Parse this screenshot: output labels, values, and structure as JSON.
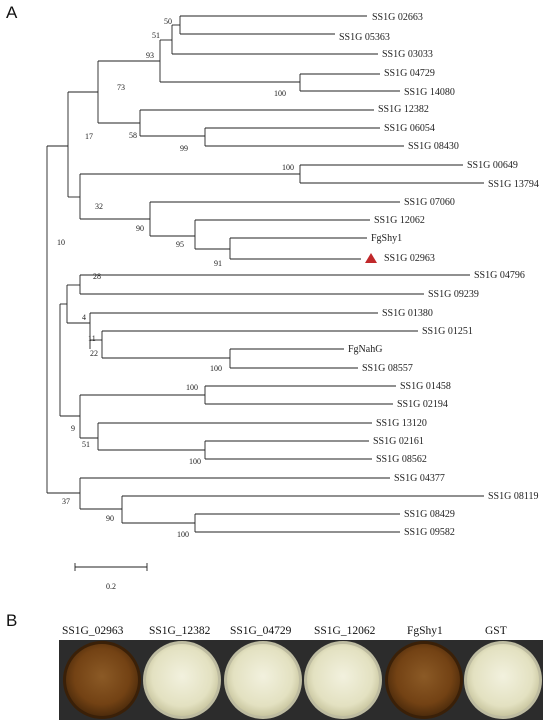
{
  "panels": {
    "a": "A",
    "b": "B"
  },
  "tree": {
    "leaves": [
      "SS1G 02663",
      "SS1G 05363",
      "SS1G 03033",
      "SS1G 04729",
      "SS1G 14080",
      "SS1G 12382",
      "SS1G 06054",
      "SS1G 08430",
      "SS1G 00649",
      "SS1G 13794",
      "SS1G 07060",
      "SS1G 12062",
      "FgShy1",
      "SS1G 02963",
      "SS1G 04796",
      "SS1G 09239",
      "SS1G 01380",
      "SS1G 01251",
      "FgNahG",
      "SS1G 08557",
      "SS1G 01458",
      "SS1G 02194",
      "SS1G 13120",
      "SS1G 02161",
      "SS1G 08562",
      "SS1G 04377",
      "SS1G 08119",
      "SS1G 08429",
      "SS1G 09582"
    ],
    "bootstrap": [
      "50",
      "51",
      "93",
      "100",
      "73",
      "58",
      "99",
      "17",
      "100",
      "32",
      "90",
      "95",
      "91",
      "10",
      "28",
      "4",
      "11",
      "22",
      "100",
      "100",
      "9",
      "51",
      "100",
      "37",
      "90",
      "100"
    ],
    "highlighted_leaf": "SS1G 02963",
    "highlight_color": "#c0282a",
    "scale_bar_label": "0.2"
  },
  "plates": [
    {
      "label": "SS1G_02963",
      "color": "#7a4a1c"
    },
    {
      "label": "SS1G_12382",
      "color": "#e6e5c9"
    },
    {
      "label": "SS1G_04729",
      "color": "#e6e4c4"
    },
    {
      "label": "SS1G_12062",
      "color": "#e9e6c2"
    },
    {
      "label": "FgShy1",
      "color": "#7c4b1d"
    },
    {
      "label": "GST",
      "color": "#e8e3bb"
    }
  ]
}
